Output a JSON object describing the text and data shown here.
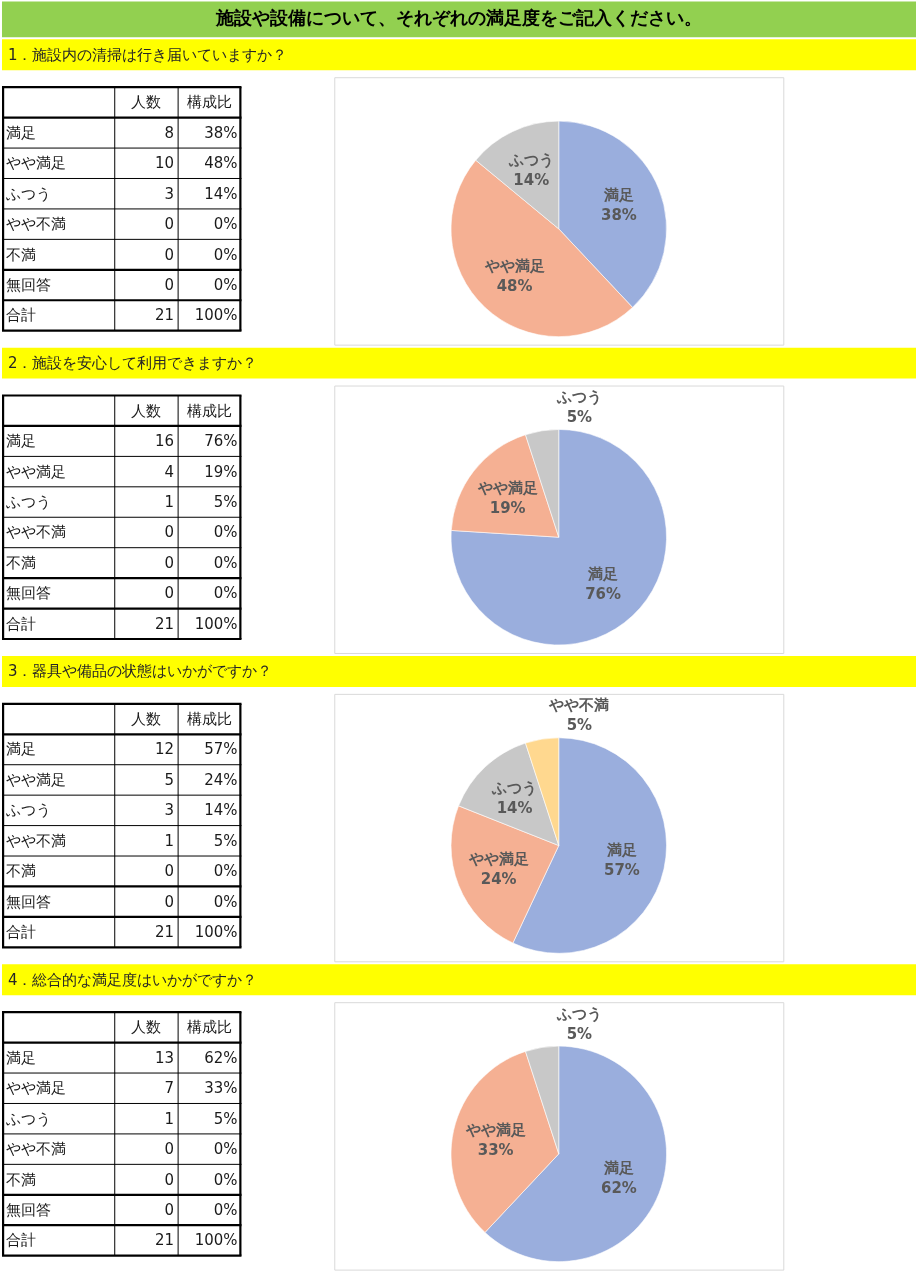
{
  "chart_data": [
    {
      "type": "other",
      "title": "施設や設備について、それぞれの満足度をご記入ください。"
    },
    {
      "type": "other",
      "title": "1．施設内の清掃は行き届いていますか？",
      "categories": [
        "満足",
        "やや満足",
        "ふつう",
        "やや不満",
        "不満",
        "無回答",
        "合計"
      ],
      "series": [
        {
          "name": "人数",
          "values": [
            8,
            10,
            3,
            0,
            0,
            0,
            21
          ]
        },
        {
          "name": "構成比",
          "values": [
            38,
            48,
            14,
            0,
            0,
            0,
            100
          ],
          "value_labels": [
            "38%",
            "48%",
            "14%",
            "0%",
            "0%",
            "0%",
            "100%"
          ]
        }
      ],
      "data_labels": true
    },
    {
      "type": "pie",
      "categories": [
        "満足",
        "やや満足",
        "ふつう"
      ],
      "values": [
        38,
        48,
        14
      ],
      "value_labels": [
        "38%",
        "48%",
        "14%"
      ],
      "colors": [
        "#9aaedd",
        "#f5b093",
        "#c8c8c8"
      ]
    },
    {
      "type": "other",
      "title": "2．施設を安心して利用できますか？",
      "categories": [
        "満足",
        "やや満足",
        "ふつう",
        "やや不満",
        "不満",
        "無回答",
        "合計"
      ],
      "series": [
        {
          "name": "人数",
          "values": [
            16,
            4,
            1,
            0,
            0,
            0,
            21
          ]
        },
        {
          "name": "構成比",
          "values": [
            76,
            19,
            5,
            0,
            0,
            0,
            100
          ],
          "value_labels": [
            "76%",
            "19%",
            "5%",
            "0%",
            "0%",
            "0%",
            "100%"
          ]
        }
      ],
      "data_labels": true
    },
    {
      "type": "pie",
      "categories": [
        "満足",
        "やや満足",
        "ふつう"
      ],
      "values": [
        76,
        19,
        5
      ],
      "value_labels": [
        "76%",
        "19%",
        "5%"
      ],
      "colors": [
        "#9aaedd",
        "#f5b093",
        "#c8c8c8"
      ]
    },
    {
      "type": "other",
      "title": "3．器具や備品の状態はいかがですか？",
      "categories": [
        "満足",
        "やや満足",
        "ふつう",
        "やや不満",
        "不満",
        "無回答",
        "合計"
      ],
      "series": [
        {
          "name": "人数",
          "values": [
            12,
            5,
            3,
            1,
            0,
            0,
            21
          ]
        },
        {
          "name": "構成比",
          "values": [
            57,
            24,
            14,
            5,
            0,
            0,
            100
          ],
          "value_labels": [
            "57%",
            "24%",
            "14%",
            "5%",
            "0%",
            "0%",
            "100%"
          ]
        }
      ],
      "data_labels": true
    },
    {
      "type": "pie",
      "categories": [
        "満足",
        "やや満足",
        "ふつう",
        "やや不満"
      ],
      "values": [
        57,
        24,
        14,
        5
      ],
      "value_labels": [
        "57%",
        "24%",
        "14%",
        "5%"
      ],
      "colors": [
        "#9aaedd",
        "#f5b093",
        "#c8c8c8",
        "#ffd88f"
      ]
    },
    {
      "type": "other",
      "title": "4．総合的な満足度はいかがですか？",
      "categories": [
        "満足",
        "やや満足",
        "ふつう",
        "やや不満",
        "不満",
        "無回答",
        "合計"
      ],
      "series": [
        {
          "name": "人数",
          "values": [
            13,
            7,
            1,
            0,
            0,
            0,
            21
          ]
        },
        {
          "name": "構成比",
          "values": [
            62,
            33,
            5,
            0,
            0,
            0,
            100
          ],
          "value_labels": [
            "62%",
            "33%",
            "5%",
            "0%",
            "0%",
            "0%",
            "100%"
          ]
        }
      ],
      "data_labels": true
    },
    {
      "type": "pie",
      "categories": [
        "満足",
        "やや満足",
        "ふつう"
      ],
      "values": [
        62,
        33,
        5
      ],
      "value_labels": [
        "62%",
        "33%",
        "5%"
      ],
      "colors": [
        "#9aaedd",
        "#f5b093",
        "#c8c8c8"
      ]
    }
  ]
}
